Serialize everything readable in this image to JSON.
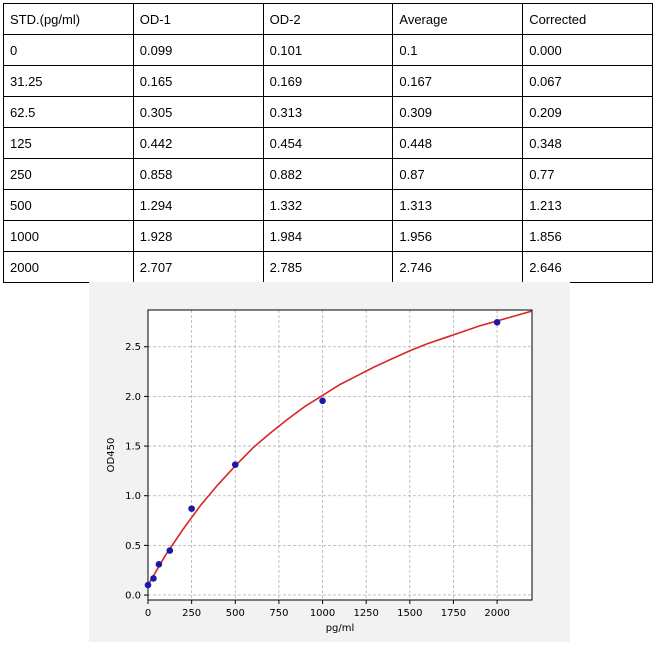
{
  "table": {
    "headers": [
      "STD.(pg/ml)",
      "OD-1",
      "OD-2",
      "Average",
      "Corrected"
    ],
    "rows": [
      [
        "0",
        "0.099",
        "0.101",
        "0.1",
        "0.000"
      ],
      [
        "31.25",
        "0.165",
        "0.169",
        "0.167",
        "0.067"
      ],
      [
        "62.5",
        "0.305",
        "0.313",
        "0.309",
        "0.209"
      ],
      [
        "125",
        "0.442",
        "0.454",
        "0.448",
        "0.348"
      ],
      [
        "250",
        "0.858",
        "0.882",
        "0.87",
        "0.77"
      ],
      [
        "500",
        "1.294",
        "1.332",
        "1.313",
        "1.213"
      ],
      [
        "1000",
        "1.928",
        "1.984",
        "1.956",
        "1.856"
      ],
      [
        "2000",
        "2.707",
        "2.785",
        "2.746",
        "2.646"
      ]
    ]
  },
  "chart_data": {
    "type": "scatter",
    "title": "",
    "xlabel": "pg/ml",
    "ylabel": "OD450",
    "xlim": [
      0,
      2200
    ],
    "ylim": [
      -0.05,
      2.87
    ],
    "xticks": [
      0,
      250,
      500,
      750,
      1000,
      1250,
      1500,
      1750,
      2000
    ],
    "xtick_labels": [
      "0",
      "250",
      "500",
      "750",
      "1000",
      "1250",
      "1500",
      "1750",
      "2000"
    ],
    "yticks": [
      0.0,
      0.5,
      1.0,
      1.5,
      2.0,
      2.5
    ],
    "ytick_labels": [
      "0.0",
      "0.5",
      "1.0",
      "1.5",
      "2.0",
      "2.5"
    ],
    "grid": true,
    "legend": "none",
    "points": {
      "x": [
        0,
        31.25,
        62.5,
        125,
        250,
        500,
        1000,
        2000
      ],
      "y": [
        0.1,
        0.167,
        0.309,
        0.448,
        0.87,
        1.313,
        1.956,
        2.746
      ]
    },
    "fit_curve": {
      "x": [
        0,
        100,
        200,
        300,
        400,
        500,
        600,
        700,
        800,
        900,
        1000,
        1100,
        1200,
        1300,
        1400,
        1500,
        1600,
        1700,
        1800,
        1900,
        2000,
        2100,
        2200
      ],
      "y": [
        0.1,
        0.4,
        0.66,
        0.9,
        1.11,
        1.3,
        1.48,
        1.63,
        1.77,
        1.9,
        2.01,
        2.12,
        2.21,
        2.3,
        2.38,
        2.46,
        2.53,
        2.59,
        2.65,
        2.71,
        2.76,
        2.81,
        2.86
      ]
    },
    "colors": {
      "points": "#1a1aa8",
      "curve": "#d62728",
      "grid": "#b0b0b0",
      "figure_bg": "#f2f2f2",
      "plot_bg": "#ffffff"
    }
  }
}
